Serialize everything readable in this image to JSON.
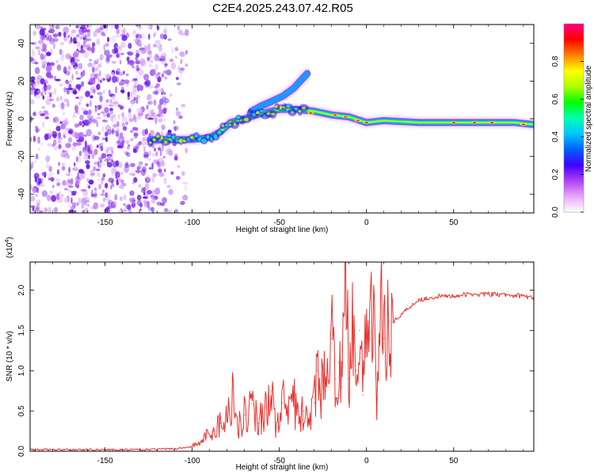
{
  "title": "C2E4.2025.243.07.42.R05",
  "chart_data": [
    {
      "type": "heatmap",
      "title": "C2E4.2025.243.07.42.R05",
      "xlabel": "Height of straight line (km)",
      "ylabel": "Frequency (Hz)",
      "xlim": [
        -193,
        96
      ],
      "ylim": [
        -50,
        50
      ],
      "xticks": [
        -150,
        -100,
        -50,
        0,
        50
      ],
      "yticks": [
        -40,
        -20,
        0,
        20,
        40
      ],
      "colorbar": {
        "label": "Normalized spectral amplitude",
        "range": [
          0,
          1
        ],
        "ticks": [
          "0.0",
          "0.2",
          "0.4",
          "0.6",
          "0.8"
        ],
        "tick_values": [
          0.0,
          0.2,
          0.4,
          0.6,
          0.8
        ],
        "colors": [
          "#ffffff",
          "#e8a8f8",
          "#b040f0",
          "#4000ff",
          "#0060ff",
          "#00c8ff",
          "#00ffb0",
          "#00ff00",
          "#b0ff00",
          "#ffff00",
          "#ff8000",
          "#ff0000",
          "#ff0080"
        ]
      },
      "noise_region_x": [
        -193,
        -103
      ],
      "ridges": [
        {
          "name": "main-track",
          "x": [
            -124,
            -110,
            -100,
            -90,
            -84,
            -78,
            -70,
            -60,
            -50,
            -40,
            -30,
            -20,
            -10,
            0,
            10,
            30,
            50,
            70,
            85,
            95
          ],
          "y": [
            -11,
            -11,
            -11,
            -10,
            -7,
            -2,
            0,
            3,
            5,
            5,
            4,
            2,
            1,
            -2,
            -1,
            -2,
            -2,
            -2,
            -2,
            -3
          ]
        },
        {
          "name": "upper-branch",
          "x": [
            -66,
            -60,
            -55,
            -48,
            -42,
            -38,
            -34
          ],
          "y": [
            4,
            7,
            9,
            12,
            16,
            20,
            24
          ]
        }
      ]
    },
    {
      "type": "line",
      "title": "",
      "xlabel": "Height of straight line (km)",
      "ylabel": "SNR (10 * v/v)",
      "scale_label": "(x10",
      "scale_exponent": "4",
      "scale_suffix": ")",
      "xlim": [
        -193,
        96
      ],
      "ylim": [
        0,
        2.35
      ],
      "xticks": [
        -150,
        -100,
        -50,
        0,
        50
      ],
      "yticks": [
        0.0,
        0.5,
        1.0,
        1.5,
        2.0
      ],
      "yticklabels": [
        "0.0",
        "0.5",
        "1.0",
        "1.5",
        "2.0"
      ],
      "color": "#e8322e",
      "series": [
        {
          "name": "SNR",
          "x": [
            -193,
            -170,
            -150,
            -130,
            -110,
            -100,
            -96,
            -92,
            -88,
            -84,
            -80,
            -77,
            -74,
            -70,
            -66,
            -62,
            -58,
            -55,
            -52,
            -48,
            -45,
            -42,
            -39,
            -36,
            -33,
            -30,
            -28,
            -26,
            -24,
            -22,
            -20,
            -18,
            -16,
            -14,
            -12,
            -10,
            -8,
            -6,
            -4,
            -2,
            0,
            2,
            4,
            6,
            8,
            10,
            12,
            15,
            20,
            25,
            30,
            40,
            50,
            60,
            70,
            80,
            90,
            96
          ],
          "y": [
            0.02,
            0.02,
            0.02,
            0.02,
            0.03,
            0.06,
            0.1,
            0.18,
            0.25,
            0.35,
            0.4,
            0.78,
            0.3,
            0.45,
            0.6,
            0.35,
            0.55,
            0.75,
            0.3,
            0.6,
            0.4,
            0.7,
            0.35,
            0.5,
            0.35,
            0.6,
            1.0,
            0.7,
            1.2,
            0.8,
            1.4,
            0.9,
            1.1,
            0.8,
            2.3,
            0.9,
            1.8,
            1.0,
            1.5,
            0.7,
            1.7,
            1.4,
            2.0,
            0.6,
            1.8,
            1.4,
            1.7,
            1.6,
            1.7,
            1.8,
            1.88,
            1.92,
            1.93,
            1.95,
            1.95,
            1.94,
            1.93,
            1.9
          ]
        }
      ]
    }
  ]
}
